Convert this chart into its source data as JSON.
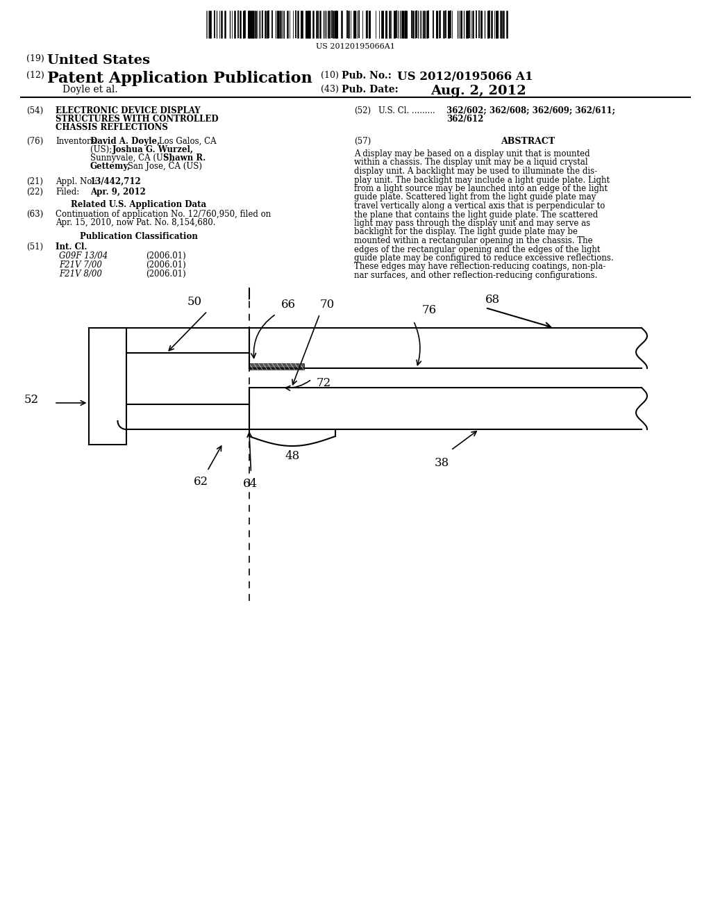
{
  "bg_color": "#ffffff",
  "barcode_text": "US 20120195066A1",
  "pub_no_value": "US 2012/0195066 A1",
  "pub_date_value": "Aug. 2, 2012",
  "authors": "Doyle et al.",
  "appl_no_value": "13/442,712",
  "filed_value": "Apr. 9, 2012",
  "int_cl_entries": [
    [
      "G09F 13/04",
      "(2006.01)"
    ],
    [
      "F21V 7/00",
      "(2006.01)"
    ],
    [
      "F21V 8/00",
      "(2006.01)"
    ]
  ],
  "abstract_lines": [
    "A display may be based on a display unit that is mounted",
    "within a chassis. The display unit may be a liquid crystal",
    "display unit. A backlight may be used to illuminate the dis-",
    "play unit. The backlight may include a light guide plate. Light",
    "from a light source may be launched into an edge of the light",
    "guide plate. Scattered light from the light guide plate may",
    "travel vertically along a vertical axis that is perpendicular to",
    "the plane that contains the light guide plate. The scattered",
    "light may pass through the display unit and may serve as",
    "backlight for the display. The light guide plate may be",
    "mounted within a rectangular opening in the chassis. The",
    "edges of the rectangular opening and the edges of the light",
    "guide plate may be configured to reduce excessive reflections.",
    "These edges may have reflection-reducing coatings, non-pla-",
    "nar surfaces, and other reflection-reducing configurations."
  ]
}
